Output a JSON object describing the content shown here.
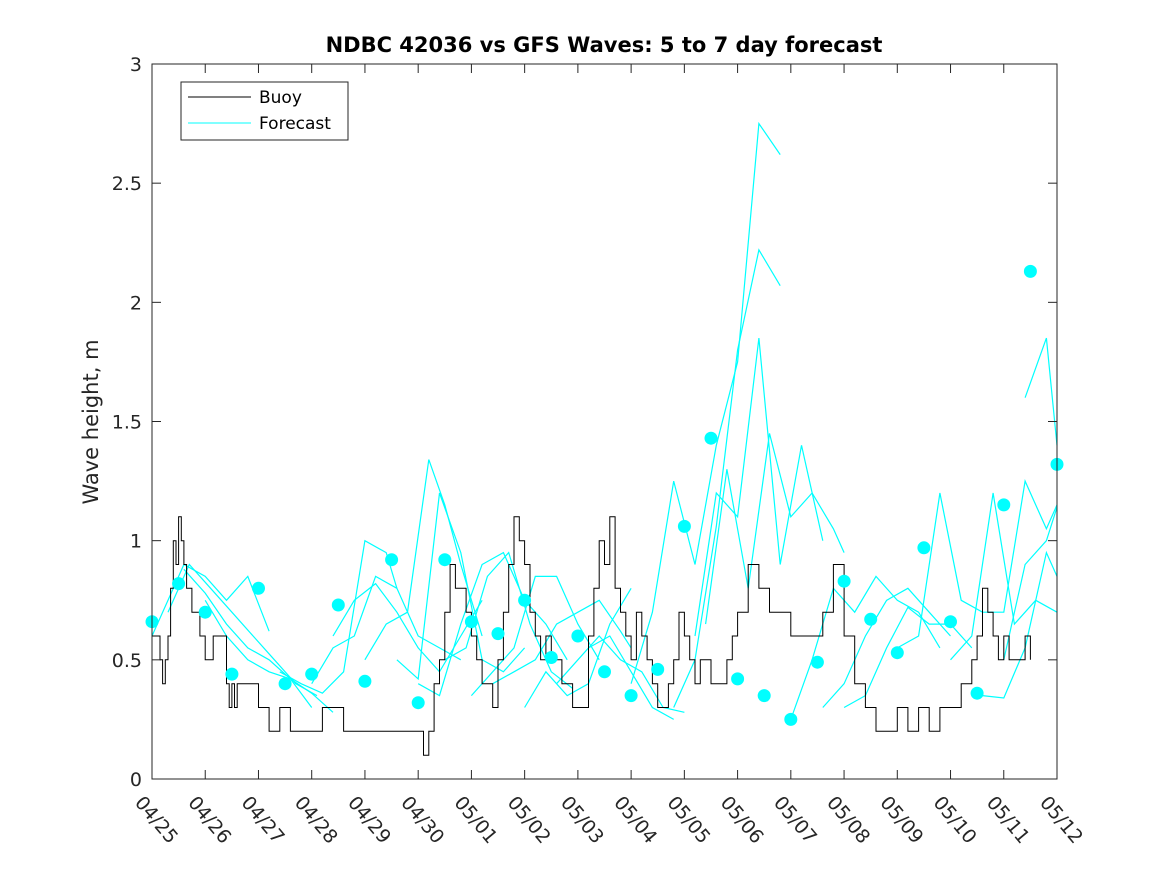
{
  "chart_data": {
    "type": "line",
    "title": "NDBC 42036 vs GFS Waves: 5 to 7 day forecast",
    "xlabel": "",
    "ylabel": "Wave height, m",
    "xlim": [
      "04/25",
      "05/12"
    ],
    "ylim": [
      0,
      3
    ],
    "x_tick_labels": [
      "04/25",
      "04/26",
      "04/27",
      "04/28",
      "04/29",
      "04/30",
      "05/01",
      "05/02",
      "05/03",
      "05/04",
      "05/05",
      "05/06",
      "05/07",
      "05/08",
      "05/09",
      "05/10",
      "05/11",
      "05/12"
    ],
    "y_ticks": [
      0,
      0.5,
      1,
      1.5,
      2,
      2.5,
      3
    ],
    "y_tick_labels": [
      "0",
      "0.5",
      "1",
      "1.5",
      "2",
      "2.5",
      "3"
    ],
    "grid": false,
    "legend_position": "top-left",
    "legend": [
      "Buoy",
      "Forecast"
    ],
    "colors": {
      "buoy": "#000000",
      "forecast": "#00ffff"
    },
    "series": [
      {
        "name": "Buoy",
        "color": "#000000",
        "x": [
          0.0,
          0.1,
          0.15,
          0.2,
          0.25,
          0.3,
          0.35,
          0.4,
          0.45,
          0.5,
          0.55,
          0.6,
          0.65,
          0.7,
          0.75,
          0.8,
          0.85,
          0.9,
          0.95,
          1.0,
          1.05,
          1.1,
          1.15,
          1.2,
          1.3,
          1.4,
          1.45,
          1.5,
          1.55,
          1.6,
          1.7,
          1.8,
          1.9,
          2.0,
          2.1,
          2.2,
          2.4,
          2.6,
          2.8,
          3.0,
          3.2,
          3.6,
          4.0,
          4.2,
          4.4,
          4.6,
          4.8,
          5.0,
          5.1,
          5.2,
          5.3,
          5.4,
          5.5,
          5.6,
          5.7,
          5.8,
          5.9,
          6.0,
          6.1,
          6.2,
          6.3,
          6.4,
          6.5,
          6.6,
          6.7,
          6.8,
          6.9,
          7.0,
          7.1,
          7.2,
          7.3,
          7.4,
          7.5,
          7.6,
          7.7,
          7.8,
          7.9,
          8.0,
          8.1,
          8.2,
          8.3,
          8.4,
          8.5,
          8.6,
          8.7,
          8.8,
          8.9,
          9.0,
          9.1,
          9.2,
          9.3,
          9.4,
          9.5,
          9.6,
          9.7,
          9.8,
          9.9,
          10.0,
          10.1,
          10.2,
          10.3,
          10.4,
          10.5,
          10.6,
          10.7,
          10.8,
          10.9,
          11.0,
          11.2,
          11.4,
          11.6,
          11.8,
          12.0,
          12.2,
          12.4,
          12.6,
          12.8,
          13.0,
          13.2,
          13.4,
          13.6,
          13.8,
          14.0,
          14.2,
          14.4,
          14.6,
          14.8,
          15.0,
          15.2,
          15.4,
          15.5,
          15.6,
          15.7,
          15.8,
          15.9,
          16.0,
          16.05,
          16.1,
          16.2,
          16.3,
          16.4,
          16.5
        ],
        "values": [
          0.6,
          0.6,
          0.5,
          0.4,
          0.5,
          0.6,
          0.8,
          1.0,
          0.9,
          1.1,
          1.0,
          0.9,
          0.8,
          0.8,
          0.7,
          0.7,
          0.7,
          0.6,
          0.6,
          0.5,
          0.5,
          0.5,
          0.6,
          0.6,
          0.6,
          0.4,
          0.3,
          0.4,
          0.3,
          0.4,
          0.4,
          0.4,
          0.4,
          0.3,
          0.3,
          0.2,
          0.3,
          0.2,
          0.2,
          0.2,
          0.3,
          0.2,
          0.2,
          0.2,
          0.2,
          0.2,
          0.2,
          0.2,
          0.1,
          0.2,
          0.4,
          0.5,
          0.7,
          0.9,
          0.8,
          0.8,
          0.7,
          0.6,
          0.5,
          0.4,
          0.4,
          0.3,
          0.5,
          0.7,
          0.9,
          1.1,
          1.0,
          0.9,
          0.7,
          0.6,
          0.5,
          0.6,
          0.5,
          0.5,
          0.4,
          0.4,
          0.3,
          0.3,
          0.3,
          0.6,
          0.8,
          1.0,
          0.9,
          1.1,
          0.8,
          0.7,
          0.6,
          0.5,
          0.7,
          0.6,
          0.5,
          0.4,
          0.3,
          0.3,
          0.4,
          0.5,
          0.7,
          0.6,
          0.5,
          0.4,
          0.5,
          0.5,
          0.4,
          0.4,
          0.4,
          0.5,
          0.6,
          0.7,
          0.9,
          0.8,
          0.7,
          0.7,
          0.6,
          0.6,
          0.6,
          0.7,
          0.9,
          0.6,
          0.4,
          0.3,
          0.2,
          0.2,
          0.3,
          0.2,
          0.3,
          0.2,
          0.3,
          0.3,
          0.4,
          0.5,
          0.6,
          0.8,
          0.7,
          0.6,
          0.5,
          0.6,
          0.6,
          0.5,
          0.5,
          0.5,
          0.6,
          0.5
        ]
      },
      {
        "name": "Forecast",
        "color": "#00ffff",
        "x": [
          0.0,
          0.5,
          1.0,
          1.5,
          2.0,
          2.5,
          3.0,
          3.5,
          4.0,
          4.5,
          5.0,
          5.5,
          6.0,
          6.5,
          7.0,
          7.5,
          8.0,
          8.5,
          9.0,
          9.5,
          10.0,
          10.5,
          11.0,
          11.5,
          12.0,
          12.5,
          13.0,
          13.5,
          14.0,
          14.5,
          15.0,
          15.5,
          16.0,
          16.5,
          17.0
        ],
        "values": [
          0.66,
          0.82,
          0.7,
          0.44,
          0.8,
          0.4,
          0.44,
          0.73,
          0.41,
          0.92,
          0.32,
          0.92,
          0.66,
          0.61,
          0.75,
          0.51,
          0.6,
          0.45,
          0.35,
          0.46,
          1.06,
          1.43,
          0.42,
          0.35,
          0.25,
          0.49,
          0.83,
          0.67,
          0.53,
          0.97,
          0.66,
          0.36,
          1.15,
          2.13,
          1.32
        ]
      }
    ],
    "forecast_runs": [
      {
        "x": [
          0,
          0.3,
          0.6,
          1.0,
          1.4,
          1.8,
          2.2
        ],
        "values": [
          0.6,
          0.75,
          0.9,
          0.85,
          0.75,
          0.85,
          0.62
        ]
      },
      {
        "x": [
          0.3,
          0.7,
          1.1,
          1.5,
          1.9,
          2.3,
          2.7,
          3.1
        ],
        "values": [
          0.7,
          0.9,
          0.8,
          0.7,
          0.6,
          0.5,
          0.4,
          0.35
        ]
      },
      {
        "x": [
          0.6,
          1.0,
          1.4,
          1.8,
          2.2,
          2.6,
          3.0
        ],
        "values": [
          0.88,
          0.78,
          0.65,
          0.55,
          0.5,
          0.42,
          0.3
        ]
      },
      {
        "x": [
          1.0,
          1.4,
          1.8,
          2.2,
          2.6,
          3.0,
          3.4
        ],
        "values": [
          0.75,
          0.6,
          0.5,
          0.45,
          0.42,
          0.36,
          0.28
        ]
      },
      {
        "x": [
          2.4,
          2.8,
          3.2,
          3.6,
          4.0,
          4.4,
          4.6
        ],
        "values": [
          0.45,
          0.4,
          0.36,
          0.45,
          1.0,
          0.95,
          0.8
        ]
      },
      {
        "x": [
          3.0,
          3.4,
          3.8,
          4.2,
          4.6,
          5.0,
          5.4,
          5.8
        ],
        "values": [
          0.4,
          0.55,
          0.6,
          0.85,
          0.8,
          0.6,
          0.55,
          0.5
        ]
      },
      {
        "x": [
          3.4,
          3.8,
          4.2,
          4.6,
          5.0,
          5.4,
          5.8,
          6.2
        ],
        "values": [
          0.6,
          0.75,
          0.82,
          0.7,
          0.55,
          0.45,
          0.6,
          0.75
        ]
      },
      {
        "x": [
          4.0,
          4.4,
          4.8,
          5.2,
          5.5,
          5.8,
          6.2
        ],
        "values": [
          0.5,
          0.65,
          0.7,
          1.34,
          1.15,
          0.9,
          0.6
        ]
      },
      {
        "x": [
          4.6,
          5.0,
          5.4,
          5.8,
          6.2,
          6.6,
          7.0
        ],
        "values": [
          0.5,
          0.42,
          1.2,
          0.95,
          0.5,
          0.45,
          0.55
        ]
      },
      {
        "x": [
          5.0,
          5.4,
          5.8,
          6.2,
          6.6,
          7.0,
          7.4,
          7.8
        ],
        "values": [
          0.4,
          0.35,
          0.65,
          0.9,
          0.95,
          0.75,
          0.65,
          0.5
        ]
      },
      {
        "x": [
          5.5,
          5.9,
          6.3,
          6.7,
          7.1,
          7.5,
          7.9
        ],
        "values": [
          0.5,
          0.55,
          0.85,
          0.95,
          0.65,
          0.45,
          0.38
        ]
      },
      {
        "x": [
          6.0,
          6.4,
          6.8,
          7.2,
          7.6,
          8.0,
          8.4
        ],
        "values": [
          0.35,
          0.45,
          0.55,
          0.85,
          0.85,
          0.65,
          0.5
        ]
      },
      {
        "x": [
          6.4,
          6.8,
          7.2,
          7.6,
          8.0,
          8.4,
          8.8,
          9.0
        ],
        "values": [
          0.4,
          0.45,
          0.5,
          0.65,
          0.7,
          0.75,
          0.62,
          0.55
        ]
      },
      {
        "x": [
          7.0,
          7.4,
          7.8,
          8.2,
          8.6,
          9.0
        ],
        "values": [
          0.3,
          0.45,
          0.35,
          0.4,
          0.65,
          0.8
        ]
      },
      {
        "x": [
          7.6,
          8.0,
          8.4,
          8.8,
          9.2,
          9.6,
          10.0
        ],
        "values": [
          0.4,
          0.5,
          0.6,
          0.5,
          0.45,
          0.3,
          0.28
        ]
      },
      {
        "x": [
          8.2,
          8.6,
          9.0,
          9.4,
          9.8
        ],
        "values": [
          0.55,
          0.6,
          0.45,
          0.3,
          0.25
        ]
      },
      {
        "x": [
          9.0,
          9.4,
          9.8,
          10.2,
          10.6,
          11.0,
          11.4,
          11.8
        ],
        "values": [
          0.4,
          0.7,
          1.25,
          0.9,
          1.4,
          1.75,
          2.75,
          2.62
        ]
      },
      {
        "x": [
          9.8,
          10.2,
          10.6,
          11.0,
          11.4,
          11.8
        ],
        "values": [
          0.3,
          0.5,
          1.06,
          1.8,
          2.22,
          2.07
        ]
      },
      {
        "x": [
          10.2,
          10.6,
          11.0,
          11.4,
          11.8,
          12.2,
          12.6
        ],
        "values": [
          0.6,
          1.2,
          1.1,
          1.85,
          0.9,
          1.4,
          1.0
        ]
      },
      {
        "x": [
          10.4,
          10.8,
          11.2,
          11.6,
          12.0,
          12.4,
          12.8,
          13.0
        ],
        "values": [
          0.65,
          1.3,
          0.8,
          1.45,
          1.1,
          1.2,
          1.05,
          0.95
        ]
      },
      {
        "x": [
          12.0,
          12.4,
          12.8,
          13.2,
          13.6,
          14.0,
          14.4,
          14.8
        ],
        "values": [
          0.25,
          0.5,
          0.8,
          0.7,
          0.85,
          0.75,
          0.7,
          0.55
        ]
      },
      {
        "x": [
          12.6,
          13.0,
          13.4,
          13.8,
          14.2,
          14.6,
          15.0
        ],
        "values": [
          0.3,
          0.4,
          0.6,
          0.75,
          0.8,
          0.7,
          0.6
        ]
      },
      {
        "x": [
          13.0,
          13.4,
          13.8,
          14.2,
          14.6,
          15.0,
          15.4
        ],
        "values": [
          0.3,
          0.35,
          0.55,
          0.72,
          0.65,
          0.65,
          0.55
        ]
      },
      {
        "x": [
          14.0,
          14.4,
          14.8,
          15.2,
          15.6,
          16.0,
          16.4,
          16.8,
          17.0
        ],
        "values": [
          0.55,
          0.6,
          1.2,
          0.75,
          0.7,
          0.7,
          1.25,
          1.05,
          1.15
        ]
      },
      {
        "x": [
          15.0,
          15.4,
          15.8,
          16.2,
          16.6,
          17.0
        ],
        "values": [
          0.5,
          0.6,
          1.2,
          0.65,
          0.75,
          0.7
        ]
      },
      {
        "x": [
          15.6,
          16.0,
          16.4,
          16.8,
          17.0
        ],
        "values": [
          0.35,
          0.34,
          0.55,
          0.95,
          0.85
        ]
      },
      {
        "x": [
          16.0,
          16.4,
          16.8,
          17.0
        ],
        "values": [
          0.5,
          0.9,
          1.0,
          1.14
        ]
      },
      {
        "x": [
          16.4,
          16.8,
          17.0
        ],
        "values": [
          1.6,
          1.85,
          1.4
        ]
      }
    ]
  }
}
